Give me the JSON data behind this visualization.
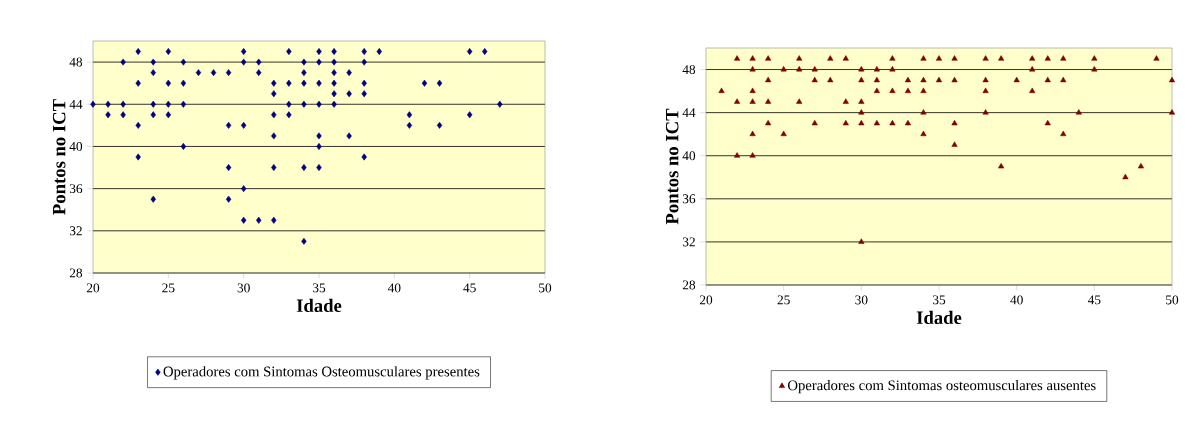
{
  "chart_data": [
    {
      "type": "scatter",
      "xlabel": "Idade",
      "ylabel": "Pontos no ICT",
      "xlim": [
        20,
        50
      ],
      "ylim": [
        28,
        50
      ],
      "xticks": [
        20,
        25,
        30,
        35,
        40,
        45,
        50
      ],
      "yticks": [
        28,
        32,
        36,
        40,
        44,
        48
      ],
      "grid": "y",
      "legend": "bottom",
      "marker": "diamond",
      "series": [
        {
          "name": "Operadores com Sintomas Osteomusculares presentes",
          "color": "#000080",
          "x": [
            20,
            21,
            21,
            22,
            22,
            22,
            23,
            23,
            23,
            23,
            24,
            24,
            24,
            24,
            24,
            25,
            25,
            25,
            25,
            26,
            26,
            26,
            26,
            27,
            28,
            29,
            29,
            29,
            29,
            30,
            30,
            30,
            30,
            30,
            31,
            31,
            31,
            32,
            32,
            32,
            32,
            32,
            32,
            33,
            33,
            33,
            33,
            34,
            34,
            34,
            34,
            34,
            34,
            35,
            35,
            35,
            35,
            35,
            35,
            35,
            36,
            36,
            36,
            36,
            36,
            36,
            37,
            37,
            37,
            38,
            38,
            38,
            38,
            38,
            39,
            41,
            41,
            42,
            43,
            43,
            45,
            45,
            46,
            47
          ],
          "values": [
            44,
            44,
            43,
            48,
            44,
            43,
            49,
            46,
            42,
            39,
            48,
            47,
            44,
            43,
            35,
            49,
            46,
            44,
            43,
            48,
            46,
            44,
            40,
            47,
            47,
            47,
            42,
            38,
            35,
            49,
            48,
            42,
            36,
            33,
            48,
            47,
            33,
            46,
            45,
            43,
            41,
            38,
            33,
            49,
            46,
            44,
            43,
            48,
            47,
            46,
            44,
            38,
            31,
            49,
            48,
            46,
            44,
            41,
            40,
            38,
            49,
            48,
            47,
            46,
            45,
            44,
            47,
            45,
            41,
            49,
            48,
            46,
            45,
            39,
            49,
            43,
            42,
            46,
            46,
            42,
            49,
            43,
            49,
            44
          ]
        }
      ]
    },
    {
      "type": "scatter",
      "xlabel": "Idade",
      "ylabel": "Pontos no ICT",
      "xlim": [
        20,
        50
      ],
      "ylim": [
        28,
        50
      ],
      "xticks": [
        20,
        25,
        30,
        35,
        40,
        45,
        50
      ],
      "yticks": [
        28,
        32,
        36,
        40,
        44,
        48
      ],
      "grid": "y",
      "legend": "bottom",
      "marker": "triangle",
      "series": [
        {
          "name": "Operadores com Sintomas osteomusculares ausentes",
          "color": "#800000",
          "x": [
            21,
            22,
            22,
            22,
            23,
            23,
            23,
            23,
            23,
            23,
            24,
            24,
            24,
            24,
            25,
            25,
            26,
            26,
            26,
            27,
            27,
            27,
            28,
            28,
            29,
            29,
            29,
            30,
            30,
            30,
            30,
            30,
            30,
            31,
            31,
            31,
            31,
            32,
            32,
            32,
            32,
            33,
            33,
            33,
            34,
            34,
            34,
            34,
            34,
            35,
            35,
            36,
            36,
            36,
            36,
            38,
            38,
            38,
            38,
            39,
            39,
            40,
            41,
            41,
            41,
            42,
            42,
            42,
            43,
            43,
            43,
            44,
            45,
            45,
            47,
            48,
            49,
            50,
            50
          ],
          "values": [
            46,
            49,
            45,
            40,
            49,
            48,
            46,
            45,
            42,
            40,
            49,
            47,
            45,
            43,
            48,
            42,
            49,
            48,
            45,
            48,
            47,
            43,
            49,
            47,
            49,
            45,
            43,
            48,
            47,
            45,
            44,
            43,
            32,
            48,
            47,
            46,
            43,
            49,
            48,
            46,
            43,
            47,
            46,
            43,
            49,
            47,
            46,
            44,
            42,
            49,
            47,
            49,
            47,
            43,
            41,
            49,
            47,
            46,
            44,
            49,
            39,
            47,
            49,
            48,
            46,
            49,
            47,
            43,
            49,
            47,
            42,
            44,
            49,
            48,
            38,
            39,
            49,
            47,
            44
          ]
        }
      ]
    }
  ]
}
